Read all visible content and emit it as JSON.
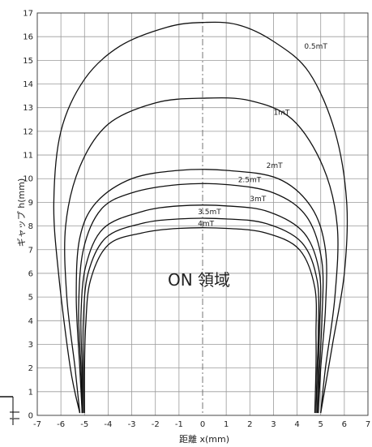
{
  "chart_data": {
    "type": "line",
    "xlabel": "距離 x(mm)",
    "ylabel": "ギャップ h(mm)",
    "xlim": [
      -7,
      7
    ],
    "ylim": [
      0,
      17
    ],
    "x_ticks": [
      -7,
      -6,
      -5,
      -4,
      -3,
      -2,
      -1,
      0,
      1,
      2,
      3,
      4,
      5,
      6,
      7
    ],
    "y_ticks": [
      0,
      1,
      2,
      3,
      4,
      5,
      6,
      7,
      8,
      9,
      10,
      11,
      12,
      13,
      14,
      15,
      16,
      17
    ],
    "grid": true,
    "annotation": "ON 領域",
    "series": [
      {
        "name": "0.5mT",
        "peak": 16.6,
        "label_at": [
          4.3,
          15.5
        ],
        "points": [
          [
            -5.2,
            0.1
          ],
          [
            -5.6,
            2.0
          ],
          [
            -6.1,
            6.0
          ],
          [
            -6.3,
            9.0
          ],
          [
            -6.0,
            12.0
          ],
          [
            -5.0,
            14.2
          ],
          [
            -3.5,
            15.6
          ],
          [
            -1.5,
            16.4
          ],
          [
            0,
            16.6
          ],
          [
            1.5,
            16.5
          ],
          [
            3.0,
            15.8
          ],
          [
            4.5,
            14.5
          ],
          [
            5.6,
            12.0
          ],
          [
            6.1,
            9.0
          ],
          [
            6.0,
            6.0
          ],
          [
            5.5,
            3.0
          ],
          [
            5.0,
            0.1
          ]
        ]
      },
      {
        "name": "1mT",
        "peak": 13.4,
        "label_at": [
          3.0,
          12.7
        ],
        "points": [
          [
            -5.2,
            0.1
          ],
          [
            -5.4,
            2.0
          ],
          [
            -5.75,
            5.0
          ],
          [
            -5.8,
            8.0
          ],
          [
            -5.2,
            10.5
          ],
          [
            -4.0,
            12.3
          ],
          [
            -2.0,
            13.2
          ],
          [
            0,
            13.4
          ],
          [
            2.0,
            13.3
          ],
          [
            3.8,
            12.5
          ],
          [
            5.1,
            10.5
          ],
          [
            5.7,
            8.0
          ],
          [
            5.6,
            5.0
          ],
          [
            5.2,
            2.0
          ],
          [
            5.0,
            0.1
          ]
        ]
      },
      {
        "name": "2mT",
        "peak": 10.35,
        "label_at": [
          2.7,
          10.45
        ],
        "points": [
          [
            -5.1,
            0.1
          ],
          [
            -5.2,
            2.0
          ],
          [
            -5.35,
            5.0
          ],
          [
            -5.2,
            7.5
          ],
          [
            -4.5,
            9.0
          ],
          [
            -3.0,
            10.0
          ],
          [
            -1.0,
            10.35
          ],
          [
            1.0,
            10.35
          ],
          [
            3.2,
            10.0
          ],
          [
            4.6,
            8.8
          ],
          [
            5.2,
            7.0
          ],
          [
            5.2,
            4.5
          ],
          [
            5.0,
            2.0
          ],
          [
            4.9,
            0.1
          ]
        ]
      },
      {
        "name": "2.5mT",
        "peak": 9.75,
        "label_at": [
          1.5,
          9.85
        ],
        "points": [
          [
            -5.1,
            0.1
          ],
          [
            -5.15,
            2.0
          ],
          [
            -5.25,
            4.5
          ],
          [
            -5.05,
            7.0
          ],
          [
            -4.3,
            8.7
          ],
          [
            -3.0,
            9.4
          ],
          [
            -1.0,
            9.75
          ],
          [
            1.0,
            9.75
          ],
          [
            3.0,
            9.4
          ],
          [
            4.4,
            8.4
          ],
          [
            5.05,
            6.5
          ],
          [
            5.05,
            4.0
          ],
          [
            4.95,
            2.0
          ],
          [
            4.9,
            0.1
          ]
        ]
      },
      {
        "name": "3mT",
        "peak": 8.85,
        "label_at": [
          2.0,
          9.05
        ],
        "points": [
          [
            -5.1,
            0.1
          ],
          [
            -5.1,
            2.0
          ],
          [
            -5.15,
            4.2
          ],
          [
            -4.95,
            6.3
          ],
          [
            -4.2,
            7.9
          ],
          [
            -2.6,
            8.6
          ],
          [
            -1.0,
            8.85
          ],
          [
            1.0,
            8.85
          ],
          [
            2.8,
            8.6
          ],
          [
            4.3,
            7.7
          ],
          [
            4.95,
            6.0
          ],
          [
            4.95,
            3.8
          ],
          [
            4.9,
            2.0
          ],
          [
            4.85,
            0.1
          ]
        ]
      },
      {
        "name": "3.5mT",
        "peak": 8.3,
        "label_at": [
          -0.2,
          8.5
        ],
        "points": [
          [
            -5.05,
            0.1
          ],
          [
            -5.05,
            2.0
          ],
          [
            -5.05,
            4.0
          ],
          [
            -4.85,
            6.0
          ],
          [
            -4.1,
            7.5
          ],
          [
            -2.6,
            8.1
          ],
          [
            -1.0,
            8.3
          ],
          [
            1.0,
            8.3
          ],
          [
            2.7,
            8.1
          ],
          [
            4.2,
            7.3
          ],
          [
            4.85,
            5.7
          ],
          [
            4.9,
            3.6
          ],
          [
            4.85,
            2.0
          ],
          [
            4.8,
            0.1
          ]
        ]
      },
      {
        "name": "4mT",
        "peak": 7.9,
        "label_at": [
          -0.2,
          8.0
        ],
        "points": [
          [
            -5.0,
            0.1
          ],
          [
            -5.0,
            2.0
          ],
          [
            -4.95,
            3.8
          ],
          [
            -4.75,
            5.7
          ],
          [
            -4.0,
            7.2
          ],
          [
            -2.6,
            7.7
          ],
          [
            -1.0,
            7.9
          ],
          [
            1.0,
            7.9
          ],
          [
            2.7,
            7.7
          ],
          [
            4.1,
            7.0
          ],
          [
            4.75,
            5.4
          ],
          [
            4.8,
            3.4
          ],
          [
            4.8,
            2.0
          ],
          [
            4.75,
            0.1
          ]
        ]
      }
    ]
  }
}
